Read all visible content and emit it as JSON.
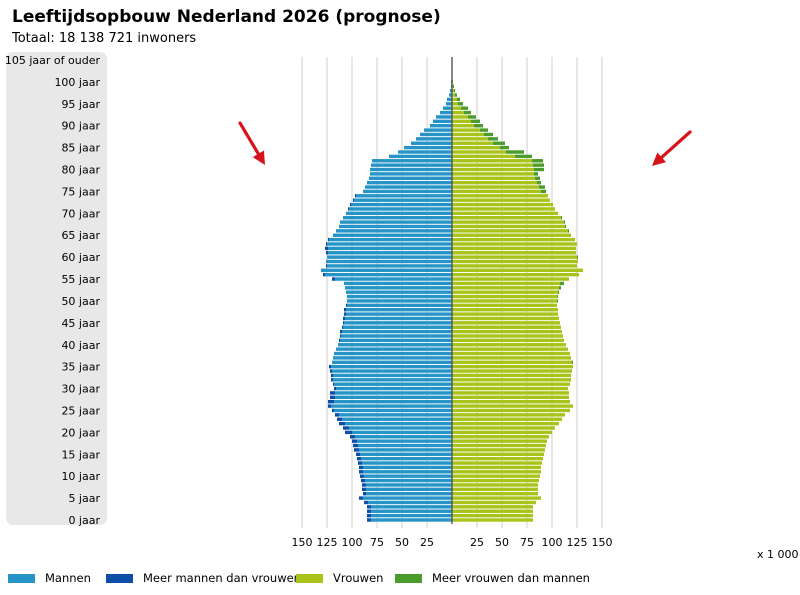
{
  "title": "Leeftijdsopbouw Nederland 2026 (prognose)",
  "subtitle": "Totaal: 18 138 721 inwoners",
  "unit_label": "x 1 000",
  "colors": {
    "men": "#2694c6",
    "men_excess": "#0d4ea6",
    "women": "#a9c31a",
    "women_excess": "#4b9b2d",
    "arrow": "#d7141b",
    "age_panel": "#e8e8e8",
    "grid": "#cfcfcf",
    "axis": "#555555"
  },
  "legend": [
    {
      "label": "Mannen",
      "color": "#2694c6"
    },
    {
      "label": "Meer mannen dan vrouwen",
      "color": "#0d4ea6"
    },
    {
      "label": "Vrouwen",
      "color": "#a9c31a"
    },
    {
      "label": "Meer vrouwen dan mannen",
      "color": "#4b9b2d"
    }
  ],
  "chart_data": {
    "type": "bar",
    "orientation": "horizontal-pyramid",
    "title": "Leeftijdsopbouw Nederland 2026 (prognose)",
    "subtitle": "Totaal: 18 138 721 inwoners",
    "unit": "x 1 000",
    "x_ticks_left": [
      "150",
      "125",
      "100",
      "75",
      "50",
      "25"
    ],
    "x_ticks_right": [
      "25",
      "50",
      "75",
      "100",
      "125",
      "150"
    ],
    "xlim": [
      0,
      150
    ],
    "grid": true,
    "legend_position": "bottom",
    "age_labels": [
      {
        "age": 0,
        "label": "0 jaar"
      },
      {
        "age": 5,
        "label": "5 jaar"
      },
      {
        "age": 10,
        "label": "10 jaar"
      },
      {
        "age": 15,
        "label": "15 jaar"
      },
      {
        "age": 20,
        "label": "20 jaar"
      },
      {
        "age": 25,
        "label": "25 jaar"
      },
      {
        "age": 30,
        "label": "30 jaar"
      },
      {
        "age": 35,
        "label": "35 jaar"
      },
      {
        "age": 40,
        "label": "40 jaar"
      },
      {
        "age": 45,
        "label": "45 jaar"
      },
      {
        "age": 50,
        "label": "50 jaar"
      },
      {
        "age": 55,
        "label": "55 jaar"
      },
      {
        "age": 60,
        "label": "60 jaar"
      },
      {
        "age": 65,
        "label": "65 jaar"
      },
      {
        "age": 70,
        "label": "70 jaar"
      },
      {
        "age": 75,
        "label": "75 jaar"
      },
      {
        "age": 80,
        "label": "80 jaar"
      },
      {
        "age": 85,
        "label": "85 jaar"
      },
      {
        "age": 90,
        "label": "90 jaar"
      },
      {
        "age": 95,
        "label": "95 jaar"
      },
      {
        "age": 100,
        "label": "100 jaar"
      },
      {
        "age": 105,
        "label": "105 jaar of ouder"
      }
    ],
    "ages": [
      0,
      1,
      2,
      3,
      4,
      5,
      6,
      7,
      8,
      9,
      10,
      11,
      12,
      13,
      14,
      15,
      16,
      17,
      18,
      19,
      20,
      21,
      22,
      23,
      24,
      25,
      26,
      27,
      28,
      29,
      30,
      31,
      32,
      33,
      34,
      35,
      36,
      37,
      38,
      39,
      40,
      41,
      42,
      43,
      44,
      45,
      46,
      47,
      48,
      49,
      50,
      51,
      52,
      53,
      54,
      55,
      56,
      57,
      58,
      59,
      60,
      61,
      62,
      63,
      64,
      65,
      66,
      67,
      68,
      69,
      70,
      71,
      72,
      73,
      74,
      75,
      76,
      77,
      78,
      79,
      80,
      81,
      82,
      83,
      84,
      85,
      86,
      87,
      88,
      89,
      90,
      91,
      92,
      93,
      94,
      95,
      96,
      97,
      98,
      99,
      100,
      101,
      102,
      103,
      104,
      105
    ],
    "series": [
      {
        "name": "Mannen",
        "values": [
          85,
          85,
          85,
          85,
          88,
          93,
          89,
          90,
          90,
          91,
          92,
          93,
          93,
          94,
          95,
          96,
          98,
          99,
          100,
          102,
          107,
          109,
          113,
          115,
          117,
          120,
          124,
          124,
          122,
          122,
          118,
          119,
          121,
          121,
          122,
          123,
          120,
          119,
          118,
          116,
          114,
          113,
          112,
          112,
          110,
          109,
          109,
          108,
          108,
          106,
          105,
          105,
          106,
          107,
          108,
          120,
          129,
          131,
          126,
          126,
          125,
          126,
          127,
          126,
          124,
          119,
          116,
          113,
          112,
          109,
          106,
          104,
          102,
          99,
          97,
          89,
          87,
          85,
          83,
          82,
          82,
          81,
          80,
          63,
          54,
          48,
          41,
          36,
          32,
          28,
          22,
          19,
          16,
          12,
          9,
          6,
          5,
          3,
          2,
          1,
          1,
          0,
          0,
          0,
          0,
          0
        ]
      },
      {
        "name": "Vrouwen",
        "values": [
          81,
          81,
          81,
          81,
          84,
          89,
          86,
          86,
          86,
          87,
          88,
          89,
          89,
          90,
          91,
          92,
          93,
          94,
          95,
          97,
          100,
          103,
          107,
          110,
          113,
          118,
          121,
          118,
          117,
          117,
          116,
          118,
          119,
          119,
          120,
          121,
          121,
          119,
          118,
          116,
          114,
          112,
          111,
          110,
          109,
          108,
          107,
          106,
          106,
          105,
          106,
          106,
          107,
          109,
          112,
          117,
          127,
          131,
          125,
          126,
          126,
          124,
          124,
          125,
          123,
          119,
          117,
          114,
          113,
          110,
          106,
          103,
          101,
          98,
          96,
          94,
          93,
          89,
          88,
          86,
          92,
          92,
          91,
          80,
          72,
          57,
          53,
          46,
          41,
          36,
          31,
          28,
          24,
          19,
          16,
          11,
          8,
          5,
          3,
          2,
          1,
          0,
          0,
          0,
          0,
          0
        ]
      }
    ]
  }
}
